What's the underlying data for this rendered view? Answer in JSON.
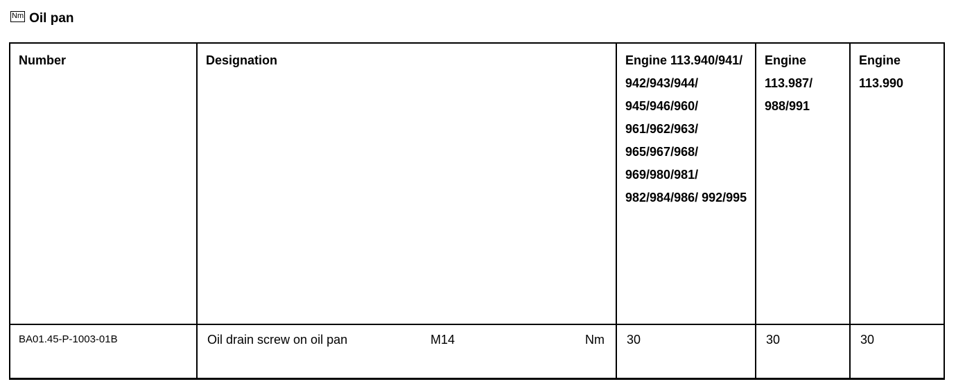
{
  "section": {
    "icon": "torque-nm-icon",
    "icon_text": "Nm",
    "title": "Oil pan"
  },
  "table": {
    "headers": [
      "Number",
      "Designation",
      "Engine 113.940/941/ 942/943/944/ 945/946/960/ 961/962/963/ 965/967/968/ 969/980/981/ 982/984/986/ 992/995",
      "Engine 113.987/ 988/991",
      "Engine 113.990"
    ],
    "rows": [
      {
        "number": "BA01.45-P-1003-01B",
        "designation": "Oil drain screw on oil pan",
        "thread": "M14",
        "unit": "Nm",
        "values": [
          "30",
          "30",
          "30"
        ]
      }
    ]
  }
}
